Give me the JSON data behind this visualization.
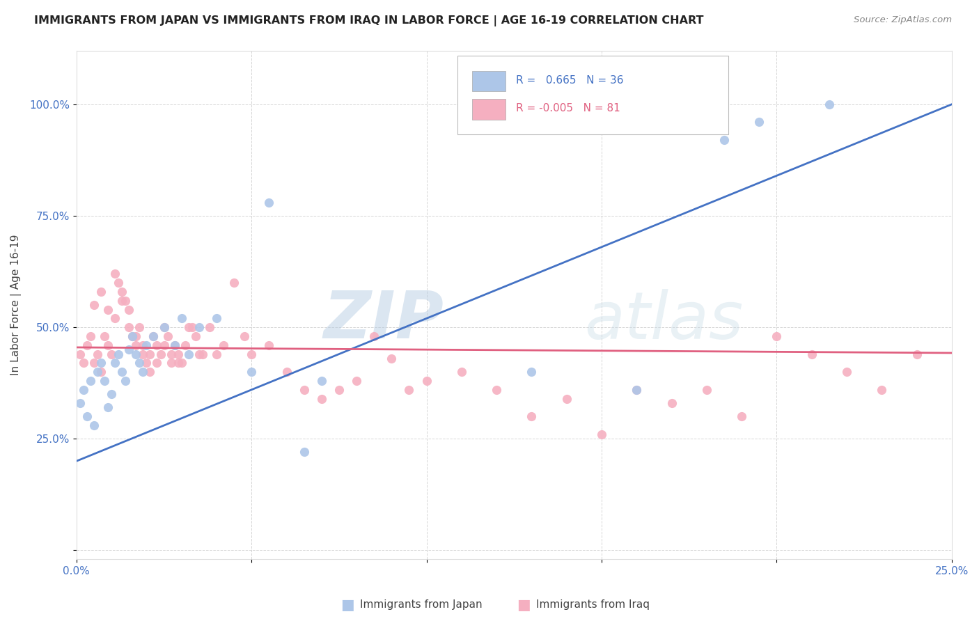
{
  "title": "IMMIGRANTS FROM JAPAN VS IMMIGRANTS FROM IRAQ IN LABOR FORCE | AGE 16-19 CORRELATION CHART",
  "source": "Source: ZipAtlas.com",
  "ylabel": "In Labor Force | Age 16-19",
  "xlim": [
    0.0,
    0.25
  ],
  "ylim": [
    -0.02,
    1.12
  ],
  "x_ticks": [
    0.0,
    0.05,
    0.1,
    0.15,
    0.2,
    0.25
  ],
  "x_tick_labels": [
    "0.0%",
    "",
    "",
    "",
    "",
    "25.0%"
  ],
  "y_ticks": [
    0.0,
    0.25,
    0.5,
    0.75,
    1.0
  ],
  "y_tick_labels": [
    "",
    "25.0%",
    "50.0%",
    "75.0%",
    "100.0%"
  ],
  "japan_color": "#adc6e8",
  "iraq_color": "#f5afc0",
  "japan_line_color": "#4472c4",
  "iraq_line_color": "#e06080",
  "japan_R": 0.665,
  "japan_N": 36,
  "iraq_R": -0.005,
  "iraq_N": 81,
  "japan_line_slope": 3.2,
  "japan_line_intercept": 0.2,
  "iraq_line_slope": -0.05,
  "iraq_line_intercept": 0.455,
  "watermark_zip": "ZIP",
  "watermark_atlas": "atlas",
  "japan_points_x": [
    0.001,
    0.002,
    0.003,
    0.004,
    0.005,
    0.006,
    0.007,
    0.008,
    0.009,
    0.01,
    0.011,
    0.012,
    0.013,
    0.014,
    0.015,
    0.016,
    0.017,
    0.018,
    0.019,
    0.02,
    0.022,
    0.025,
    0.028,
    0.03,
    0.032,
    0.035,
    0.04,
    0.05,
    0.055,
    0.065,
    0.07,
    0.13,
    0.16,
    0.185,
    0.195,
    0.215
  ],
  "japan_points_y": [
    0.33,
    0.36,
    0.3,
    0.38,
    0.28,
    0.4,
    0.42,
    0.38,
    0.32,
    0.35,
    0.42,
    0.44,
    0.4,
    0.38,
    0.45,
    0.48,
    0.44,
    0.42,
    0.4,
    0.46,
    0.48,
    0.5,
    0.46,
    0.52,
    0.44,
    0.5,
    0.52,
    0.4,
    0.78,
    0.22,
    0.38,
    0.4,
    0.36,
    0.92,
    0.96,
    1.0
  ],
  "iraq_points_x": [
    0.001,
    0.002,
    0.003,
    0.004,
    0.005,
    0.006,
    0.007,
    0.008,
    0.009,
    0.01,
    0.011,
    0.012,
    0.013,
    0.014,
    0.015,
    0.016,
    0.017,
    0.018,
    0.019,
    0.02,
    0.021,
    0.022,
    0.023,
    0.024,
    0.025,
    0.026,
    0.027,
    0.028,
    0.029,
    0.03,
    0.032,
    0.034,
    0.036,
    0.038,
    0.04,
    0.042,
    0.045,
    0.048,
    0.05,
    0.055,
    0.06,
    0.065,
    0.07,
    0.075,
    0.08,
    0.085,
    0.09,
    0.095,
    0.1,
    0.11,
    0.12,
    0.13,
    0.14,
    0.15,
    0.16,
    0.17,
    0.18,
    0.19,
    0.2,
    0.21,
    0.22,
    0.23,
    0.24,
    0.005,
    0.007,
    0.009,
    0.011,
    0.013,
    0.015,
    0.017,
    0.019,
    0.021,
    0.023,
    0.025,
    0.027,
    0.029,
    0.031,
    0.033,
    0.035
  ],
  "iraq_points_y": [
    0.44,
    0.42,
    0.46,
    0.48,
    0.42,
    0.44,
    0.4,
    0.48,
    0.46,
    0.44,
    0.62,
    0.6,
    0.58,
    0.56,
    0.54,
    0.48,
    0.46,
    0.5,
    0.44,
    0.42,
    0.4,
    0.48,
    0.46,
    0.44,
    0.5,
    0.48,
    0.42,
    0.46,
    0.44,
    0.42,
    0.5,
    0.48,
    0.44,
    0.5,
    0.44,
    0.46,
    0.6,
    0.48,
    0.44,
    0.46,
    0.4,
    0.36,
    0.34,
    0.36,
    0.38,
    0.48,
    0.43,
    0.36,
    0.38,
    0.4,
    0.36,
    0.3,
    0.34,
    0.26,
    0.36,
    0.33,
    0.36,
    0.3,
    0.48,
    0.44,
    0.4,
    0.36,
    0.44,
    0.55,
    0.58,
    0.54,
    0.52,
    0.56,
    0.5,
    0.48,
    0.46,
    0.44,
    0.42,
    0.46,
    0.44,
    0.42,
    0.46,
    0.5,
    0.44
  ]
}
